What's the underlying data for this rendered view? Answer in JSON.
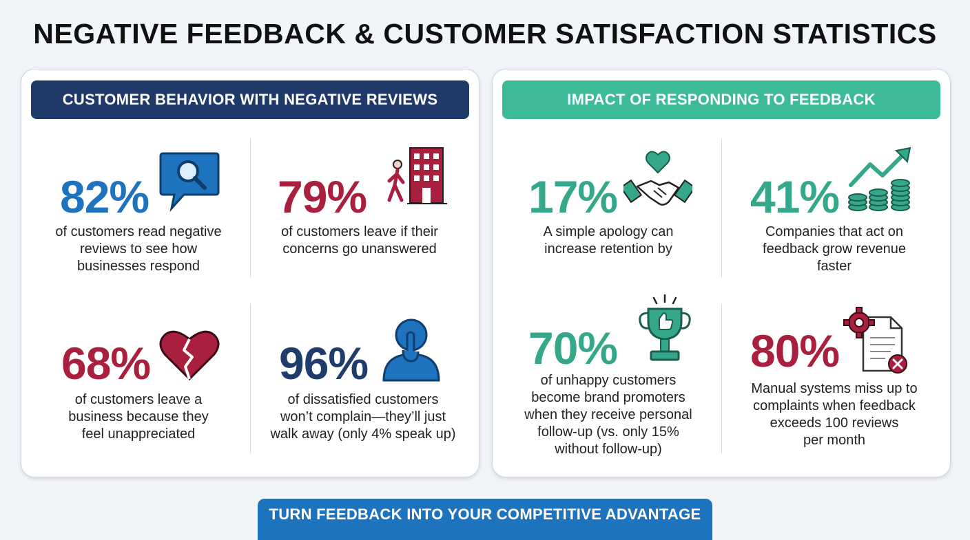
{
  "title": "NEGATIVE FEEDBACK & CUSTOMER SATISFACTION STATISTICS",
  "colors": {
    "blue": "#1e73be",
    "crimson": "#a8203e",
    "navy": "#1f3d6b",
    "teal": "#35a88b",
    "header_navy": "#1f3a68",
    "header_teal": "#3dbb98"
  },
  "left_panel": {
    "header": "CUSTOMER BEHAVIOR WITH NEGATIVE REVIEWS",
    "stats": [
      {
        "value": "82%",
        "text": [
          "of customers read negative",
          "reviews to see how",
          "businesses respond"
        ],
        "icon": "search-chat-icon"
      },
      {
        "value": "79%",
        "text": [
          "of customers leave if their",
          "concerns go unanswered"
        ],
        "icon": "walking-away-building-icon"
      },
      {
        "value": "68%",
        "text": [
          "of customers leave a",
          "business because they",
          "feel unappreciated"
        ],
        "icon": "broken-heart-icon"
      },
      {
        "value": "96%",
        "text": [
          "of dissatisfied customers",
          "won’t complain—they’ll just",
          "walk away (only 4% speak up)"
        ],
        "icon": "silent-person-icon"
      }
    ]
  },
  "right_panel": {
    "header": "IMPACT OF RESPONDING TO FEEDBACK",
    "stats": [
      {
        "value": "17%",
        "text": [
          "A simple apology can",
          "increase retention by"
        ],
        "icon": "handshake-heart-icon"
      },
      {
        "value": "41%",
        "text": [
          "Companies that act on",
          "feedback grow revenue",
          "faster"
        ],
        "icon": "growth-coins-icon"
      },
      {
        "value": "70%",
        "text": [
          "of unhappy customers",
          "become brand promoters",
          "when they receive personal",
          "follow-up (vs. only 15%",
          "without follow-up)"
        ],
        "icon": "trophy-thumbs-up-icon"
      },
      {
        "value": "80%",
        "text": [
          "Manual systems miss up to",
          "complaints when feedback",
          "exceeds 100 reviews",
          "per month"
        ],
        "icon": "gear-document-error-icon"
      }
    ]
  },
  "footer": "TURN FEEDBACK INTO YOUR COMPETITIVE ADVANTAGE"
}
